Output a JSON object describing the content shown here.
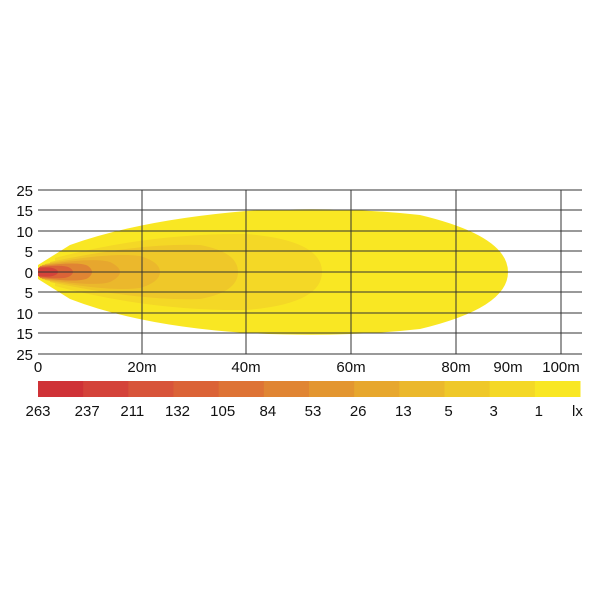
{
  "y_labels": [
    "25",
    "15",
    "10",
    "5",
    "0",
    "5",
    "10",
    "15",
    "25"
  ],
  "x_labels": [
    "0",
    "20m",
    "40m",
    "60m",
    "80m",
    "90m",
    "100m"
  ],
  "legend": {
    "unit": "lx",
    "levels": [
      {
        "label": "263",
        "color": "#cf3237"
      },
      {
        "label": "237",
        "color": "#d4433a"
      },
      {
        "label": "211",
        "color": "#d8543a"
      },
      {
        "label": "132",
        "color": "#db6337"
      },
      {
        "label": "105",
        "color": "#de7335"
      },
      {
        "label": "84",
        "color": "#e08533"
      },
      {
        "label": "53",
        "color": "#e39630"
      },
      {
        "label": "26",
        "color": "#e7a72e"
      },
      {
        "label": "13",
        "color": "#ebb82c"
      },
      {
        "label": "5",
        "color": "#efc829"
      },
      {
        "label": "3",
        "color": "#f4d826"
      },
      {
        "label": "1",
        "color": "#f9e723"
      }
    ]
  }
}
